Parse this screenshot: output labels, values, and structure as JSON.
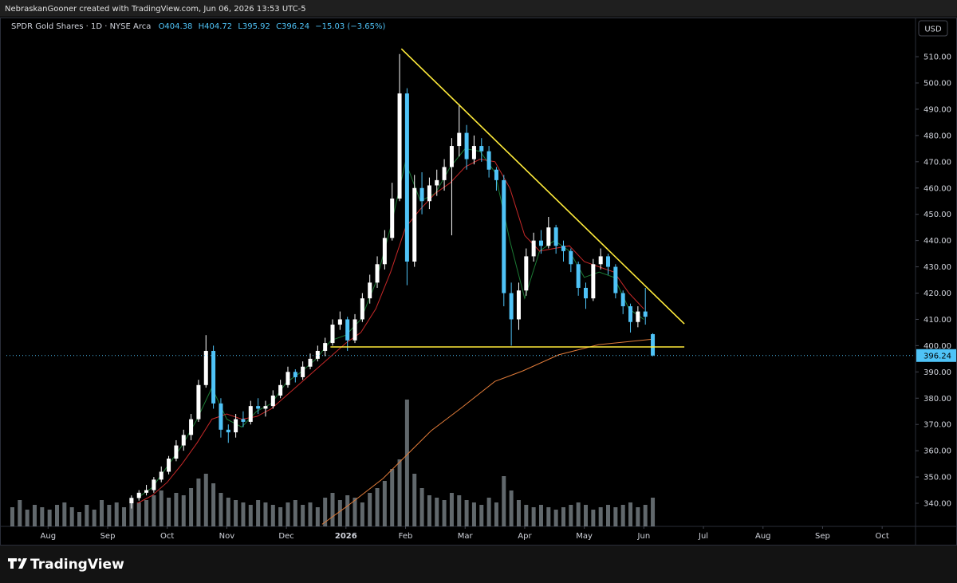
{
  "header": {
    "attribution": "NebraskanGooner created with TradingView.com, Jun 06, 2026 13:53 UTC-5",
    "logo": "TradingView"
  },
  "chart_data": {
    "type": "candlestick",
    "title": "SPDR Gold Shares · 1D · NYSE Arca",
    "ohlc_legend": [
      "O404.38",
      "H404.72",
      "L395.92",
      "C396.24",
      "−15.03 (−3.65%)"
    ],
    "currency": "USD",
    "up_color": "#ffffff",
    "down_color": "#4fc3f7",
    "x": [
      1.4,
      1.525,
      1.65,
      1.775,
      1.9,
      2.025,
      2.15,
      2.275,
      2.4,
      2.525,
      2.65,
      2.775,
      2.9,
      3.025,
      3.15,
      3.275,
      3.4,
      3.525,
      3.65,
      3.775,
      3.9,
      4.025,
      4.15,
      4.275,
      4.4,
      4.525,
      4.65,
      4.775,
      4.9,
      5.025,
      5.15,
      5.275,
      5.4,
      5.525,
      5.65,
      5.775,
      5.9,
      6.025,
      6.15,
      6.275,
      6.4,
      6.525,
      6.65,
      6.775,
      6.9,
      7.025,
      7.15,
      7.275,
      7.4,
      7.525,
      7.65,
      7.775,
      7.9,
      8.025,
      8.15,
      8.275,
      8.4,
      8.525,
      8.65,
      8.775,
      8.9,
      9.025,
      9.15,
      9.275,
      9.4,
      9.525,
      9.65,
      9.775,
      9.9,
      10.025,
      10.15
    ],
    "ohlc": [
      [
        340,
        343,
        338,
        342
      ],
      [
        342,
        345,
        341,
        344
      ],
      [
        344,
        347,
        343,
        345
      ],
      [
        345,
        350,
        344,
        349
      ],
      [
        349,
        354,
        348,
        352
      ],
      [
        352,
        358,
        351,
        357
      ],
      [
        357,
        364,
        356,
        362
      ],
      [
        362,
        368,
        360,
        366
      ],
      [
        366,
        374,
        364,
        372
      ],
      [
        372,
        387,
        371,
        385
      ],
      [
        385,
        404,
        384,
        398
      ],
      [
        398,
        400,
        376,
        378
      ],
      [
        378,
        380,
        365,
        368
      ],
      [
        368,
        370,
        363,
        367
      ],
      [
        367,
        374,
        365,
        372
      ],
      [
        372,
        375,
        369,
        371
      ],
      [
        371,
        379,
        370,
        377
      ],
      [
        377,
        380,
        374,
        376
      ],
      [
        376,
        379,
        373,
        377
      ],
      [
        377,
        383,
        376,
        381
      ],
      [
        381,
        387,
        380,
        385
      ],
      [
        385,
        392,
        384,
        390
      ],
      [
        390,
        391,
        386,
        388
      ],
      [
        388,
        394,
        387,
        392
      ],
      [
        392,
        397,
        391,
        395
      ],
      [
        395,
        400,
        394,
        398
      ],
      [
        398,
        403,
        396,
        401
      ],
      [
        401,
        410,
        400,
        408
      ],
      [
        408,
        413,
        406,
        410
      ],
      [
        410,
        411,
        398,
        402
      ],
      [
        402,
        412,
        401,
        410
      ],
      [
        410,
        420,
        409,
        418
      ],
      [
        418,
        427,
        416,
        424
      ],
      [
        424,
        434,
        422,
        431
      ],
      [
        431,
        444,
        429,
        441
      ],
      [
        441,
        462,
        440,
        456
      ],
      [
        456,
        511,
        455,
        496
      ],
      [
        496,
        498,
        423,
        432
      ],
      [
        432,
        465,
        430,
        460
      ],
      [
        460,
        466,
        450,
        455
      ],
      [
        455,
        464,
        452,
        461
      ],
      [
        461,
        467,
        457,
        463
      ],
      [
        463,
        471,
        459,
        468
      ],
      [
        468,
        479,
        442,
        476
      ],
      [
        476,
        492,
        472,
        481
      ],
      [
        481,
        484,
        467,
        471
      ],
      [
        471,
        480,
        469,
        476
      ],
      [
        476,
        479,
        470,
        474
      ],
      [
        474,
        476,
        464,
        467
      ],
      [
        467,
        468,
        459,
        463
      ],
      [
        463,
        465,
        415,
        420
      ],
      [
        420,
        424,
        400,
        410
      ],
      [
        410,
        424,
        406,
        421
      ],
      [
        421,
        437,
        419,
        434
      ],
      [
        434,
        443,
        432,
        440
      ],
      [
        440,
        444,
        435,
        438
      ],
      [
        438,
        449,
        437,
        445
      ],
      [
        445,
        446,
        435,
        438
      ],
      [
        438,
        440,
        432,
        436
      ],
      [
        436,
        437,
        428,
        431
      ],
      [
        431,
        432,
        419,
        422
      ],
      [
        422,
        424,
        414,
        418
      ],
      [
        418,
        433,
        417,
        431
      ],
      [
        431,
        437,
        429,
        434
      ],
      [
        434,
        435,
        427,
        430
      ],
      [
        430,
        431,
        418,
        420
      ],
      [
        420,
        421,
        412,
        415
      ],
      [
        415,
        416,
        405,
        409
      ],
      [
        409,
        415,
        407,
        413
      ],
      [
        413,
        422,
        408,
        411
      ],
      [
        404.38,
        404.72,
        395.92,
        396.24
      ]
    ],
    "volume": {
      "color": "#b0bec5",
      "ylim": [
        0,
        100
      ],
      "x": [
        -0.6,
        -0.475,
        -0.35,
        -0.225,
        -0.1,
        0.025,
        0.15,
        0.275,
        0.4,
        0.525,
        0.65,
        0.775,
        0.9,
        1.025,
        1.15,
        1.275,
        1.4,
        1.525,
        1.65,
        1.775,
        1.9,
        2.025,
        2.15,
        2.275,
        2.4,
        2.525,
        2.65,
        2.775,
        2.9,
        3.025,
        3.15,
        3.275,
        3.4,
        3.525,
        3.65,
        3.775,
        3.9,
        4.025,
        4.15,
        4.275,
        4.4,
        4.525,
        4.65,
        4.775,
        4.9,
        5.025,
        5.15,
        5.275,
        5.4,
        5.525,
        5.65,
        5.775,
        5.9,
        6.025,
        6.15,
        6.275,
        6.4,
        6.525,
        6.65,
        6.775,
        6.9,
        7.025,
        7.15,
        7.275,
        7.4,
        7.525,
        7.65,
        7.775,
        7.9,
        8.025,
        8.15,
        8.275,
        8.4,
        8.525,
        8.65,
        8.775,
        8.9,
        9.025,
        9.15,
        9.275,
        9.4,
        9.525,
        9.65,
        9.775,
        9.9,
        10.025,
        10.15
      ],
      "values": [
        8,
        11,
        7,
        9,
        8,
        7,
        9,
        10,
        8,
        6,
        9,
        7,
        11,
        9,
        10,
        8,
        12,
        10,
        11,
        13,
        15,
        12,
        14,
        13,
        16,
        20,
        22,
        18,
        14,
        12,
        11,
        10,
        9,
        11,
        10,
        9,
        8,
        10,
        11,
        9,
        10,
        8,
        12,
        14,
        11,
        13,
        12,
        10,
        14,
        16,
        19,
        24,
        28,
        53,
        22,
        16,
        13,
        12,
        11,
        14,
        13,
        11,
        10,
        9,
        12,
        10,
        21,
        15,
        11,
        9,
        8,
        9,
        8,
        7,
        8,
        9,
        10,
        9,
        7,
        8,
        9,
        8,
        9,
        10,
        8,
        9,
        12
      ]
    },
    "moving_averages": [
      {
        "color": "#1b7a34",
        "x": [
          1.5,
          1.75,
          2.0,
          2.25,
          2.5,
          2.75,
          3.0,
          3.25,
          3.5,
          3.75,
          4.0,
          4.25,
          4.5,
          4.75,
          5.0,
          5.25,
          5.5,
          5.75,
          6.0,
          6.25,
          6.5,
          6.75,
          7.0,
          7.25,
          7.5,
          7.75,
          8.0,
          8.25,
          8.5,
          8.75,
          9.0,
          9.25,
          9.5,
          9.75,
          10.0
        ],
        "values": [
          342,
          346,
          354,
          362,
          372,
          384,
          372,
          369,
          375,
          378,
          386,
          390,
          395,
          402,
          404,
          410,
          424,
          445,
          470,
          455,
          458,
          468,
          475,
          474,
          466,
          440,
          418,
          436,
          440,
          436,
          426,
          428,
          426,
          414,
          410
        ]
      },
      {
        "color": "#c62828",
        "x": [
          1.5,
          1.75,
          2.0,
          2.25,
          2.5,
          2.75,
          3.0,
          3.25,
          3.5,
          3.75,
          4.0,
          4.25,
          4.5,
          4.75,
          5.0,
          5.25,
          5.5,
          5.75,
          6.0,
          6.25,
          6.5,
          6.75,
          7.0,
          7.25,
          7.5,
          7.75,
          8.0,
          8.25,
          8.5,
          8.75,
          9.0,
          9.25,
          9.5,
          9.75,
          10.0
        ],
        "values": [
          340,
          343,
          348,
          355,
          363,
          372,
          374,
          372,
          373,
          376,
          381,
          386,
          391,
          396,
          401,
          405,
          414,
          428,
          445,
          452,
          458,
          462,
          468,
          471,
          470,
          460,
          442,
          436,
          437,
          438,
          432,
          430,
          428,
          420,
          414
        ]
      },
      {
        "color": "#e07b39",
        "x": [
          4.6,
          5.05,
          5.62,
          5.96,
          6.43,
          6.96,
          7.5,
          7.97,
          8.57,
          9.24,
          10.15
        ],
        "values": [
          332,
          339.4,
          349.4,
          357,
          367.6,
          376.7,
          386.4,
          390.4,
          396.5,
          400.4,
          402.5
        ]
      }
    ],
    "trendlines": [
      {
        "color": "#ffeb3b",
        "x": [
          5.93,
          10.68
        ],
        "values": [
          513,
          408.3
        ]
      },
      {
        "color": "#ffeb3b",
        "x": [
          4.74,
          10.68
        ],
        "values": [
          399.5,
          399.5
        ]
      }
    ],
    "last_price": {
      "value": 396.24,
      "label": "396.24",
      "color": "#4fc3f7"
    },
    "xlim": [
      -0.7,
      14.56
    ],
    "xticks": [
      {
        "value": 0,
        "label": "Aug"
      },
      {
        "value": 1,
        "label": "Sep"
      },
      {
        "value": 2,
        "label": "Oct"
      },
      {
        "value": 3,
        "label": "Nov"
      },
      {
        "value": 4,
        "label": "Dec"
      },
      {
        "value": 5,
        "label": "2026",
        "bold": true
      },
      {
        "value": 6,
        "label": "Feb"
      },
      {
        "value": 7,
        "label": "Mar"
      },
      {
        "value": 8,
        "label": "Apr"
      },
      {
        "value": 9,
        "label": "May"
      },
      {
        "value": 10,
        "label": "Jun"
      },
      {
        "value": 11,
        "label": "Jul"
      },
      {
        "value": 12,
        "label": "Aug"
      },
      {
        "value": 13,
        "label": "Sep"
      },
      {
        "value": 14,
        "label": "Oct"
      }
    ],
    "ylim": [
      331.2,
      524.9
    ],
    "yticks": [
      {
        "value": 340,
        "label": "340.00"
      },
      {
        "value": 350,
        "label": "350.00"
      },
      {
        "value": 360,
        "label": "360.00"
      },
      {
        "value": 370,
        "label": "370.00"
      },
      {
        "value": 380,
        "label": "380.00"
      },
      {
        "value": 390,
        "label": "390.00"
      },
      {
        "value": 400,
        "label": "400.00"
      },
      {
        "value": 410,
        "label": "410.00"
      },
      {
        "value": 420,
        "label": "420.00"
      },
      {
        "value": 430,
        "label": "430.00"
      },
      {
        "value": 440,
        "label": "440.00"
      },
      {
        "value": 450,
        "label": "450.00"
      },
      {
        "value": 460,
        "label": "460.00"
      },
      {
        "value": 470,
        "label": "470.00"
      },
      {
        "value": 480,
        "label": "480.00"
      },
      {
        "value": 490,
        "label": "490.00"
      },
      {
        "value": 500,
        "label": "500.00"
      },
      {
        "value": 510,
        "label": "510.00"
      }
    ],
    "grid": false
  }
}
